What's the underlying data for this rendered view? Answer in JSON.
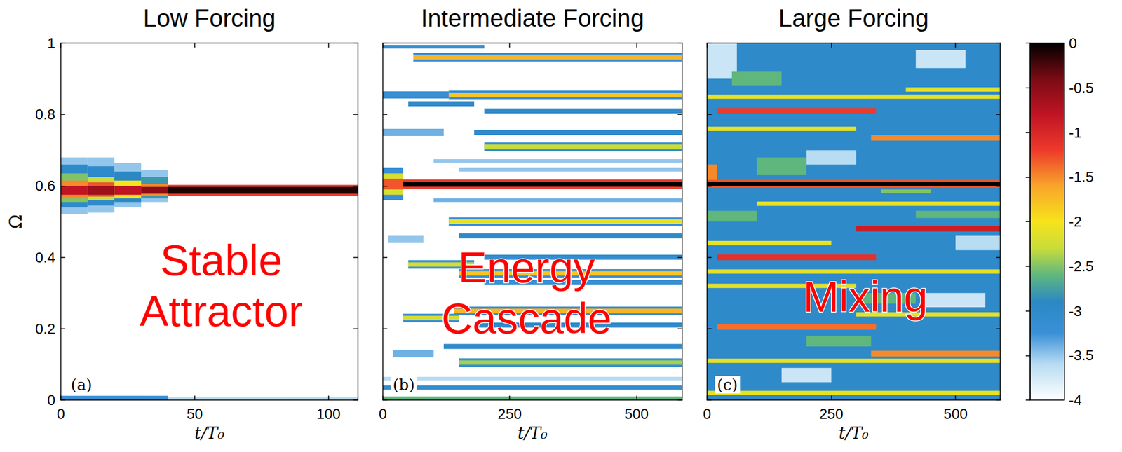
{
  "chart_data": [
    {
      "type": "heatmap",
      "title": "Low Forcing",
      "xlabel": "t/T₀",
      "ylabel": "Ω",
      "annotation": [
        "Stable",
        "Attractor"
      ],
      "panel_label": "(a)",
      "xlim": [
        0,
        111
      ],
      "ylim": [
        0,
        1
      ],
      "xticks": [
        0,
        50,
        100
      ],
      "yticks": [
        0,
        0.2,
        0.4,
        0.6,
        0.8,
        1
      ],
      "cells": [
        [
          0,
          111,
          0,
          1,
          -4
        ],
        [
          0,
          10,
          0.52,
          0.68,
          -3.5
        ],
        [
          0,
          10,
          0.54,
          0.66,
          -3
        ],
        [
          0,
          10,
          0.555,
          0.635,
          -2.5
        ],
        [
          0,
          10,
          0.565,
          0.615,
          -1.5
        ],
        [
          0,
          10,
          0.575,
          0.6,
          -0.8
        ],
        [
          10,
          20,
          0.525,
          0.68,
          -3.5
        ],
        [
          10,
          20,
          0.545,
          0.655,
          -3
        ],
        [
          10,
          20,
          0.56,
          0.625,
          -2.3
        ],
        [
          10,
          20,
          0.57,
          0.61,
          -1.3
        ],
        [
          10,
          20,
          0.575,
          0.6,
          -0.6
        ],
        [
          20,
          30,
          0.54,
          0.665,
          -3.5
        ],
        [
          20,
          30,
          0.555,
          0.64,
          -2.9
        ],
        [
          20,
          30,
          0.565,
          0.615,
          -2
        ],
        [
          20,
          30,
          0.575,
          0.6,
          -0.8
        ],
        [
          30,
          40,
          0.555,
          0.645,
          -3.5
        ],
        [
          30,
          40,
          0.565,
          0.625,
          -2.8
        ],
        [
          30,
          40,
          0.572,
          0.605,
          -1.5
        ],
        [
          30,
          40,
          0.578,
          0.597,
          -0.5
        ],
        [
          40,
          111,
          0.572,
          0.603,
          -1.2
        ],
        [
          40,
          111,
          0.578,
          0.597,
          -0.1
        ],
        [
          0,
          40,
          0,
          0.012,
          -3.2
        ],
        [
          40,
          111,
          0,
          0.008,
          -3.6
        ]
      ]
    },
    {
      "type": "heatmap",
      "title": "Intermediate Forcing",
      "xlabel": "t/T₀",
      "annotation": [
        "Energy",
        "Cascade"
      ],
      "panel_label": "(b)",
      "tick_labels": "x",
      "xlim": [
        0,
        590
      ],
      "ylim": [
        0,
        1
      ],
      "xticks": [
        0,
        250,
        500
      ],
      "yticks": [
        0,
        0.2,
        0.4,
        0.6,
        0.8,
        1
      ],
      "cells": [
        [
          0,
          590,
          0,
          1,
          -4
        ],
        [
          0,
          40,
          0.56,
          0.65,
          -3.2
        ],
        [
          0,
          40,
          0.575,
          0.635,
          -2.2
        ],
        [
          0,
          40,
          0.59,
          0.62,
          -1.3
        ],
        [
          40,
          590,
          0.592,
          0.618,
          -1.2
        ],
        [
          40,
          590,
          0.598,
          0.612,
          0
        ],
        [
          60,
          590,
          0.948,
          0.972,
          -3.2
        ],
        [
          60,
          590,
          0.954,
          0.966,
          -1.7
        ],
        [
          0,
          200,
          0.985,
          0.995,
          -3.1
        ],
        [
          0,
          130,
          0.845,
          0.865,
          -3.2
        ],
        [
          130,
          590,
          0.843,
          0.867,
          -3.2
        ],
        [
          130,
          590,
          0.849,
          0.861,
          -1.8
        ],
        [
          50,
          180,
          0.823,
          0.837,
          -3
        ],
        [
          200,
          590,
          0.803,
          0.817,
          -3
        ],
        [
          180,
          590,
          0.743,
          0.757,
          -3
        ],
        [
          200,
          590,
          0.698,
          0.722,
          -3.2
        ],
        [
          200,
          590,
          0.704,
          0.716,
          -2.3
        ],
        [
          100,
          590,
          0.665,
          0.675,
          -3.5
        ],
        [
          150,
          590,
          0.64,
          0.65,
          -3.5
        ],
        [
          100,
          590,
          0.555,
          0.565,
          -3.4
        ],
        [
          130,
          590,
          0.488,
          0.512,
          -3.2
        ],
        [
          130,
          590,
          0.494,
          0.506,
          -2.1
        ],
        [
          150,
          590,
          0.453,
          0.467,
          -3
        ],
        [
          200,
          590,
          0.393,
          0.407,
          -3.1
        ],
        [
          50,
          180,
          0.368,
          0.392,
          -3.2
        ],
        [
          50,
          180,
          0.374,
          0.386,
          -2.2
        ],
        [
          150,
          590,
          0.343,
          0.367,
          -3.2
        ],
        [
          150,
          590,
          0.349,
          0.361,
          -1.8
        ],
        [
          200,
          590,
          0.324,
          0.336,
          -3.2
        ],
        [
          140,
          590,
          0.238,
          0.262,
          -3.2
        ],
        [
          140,
          590,
          0.244,
          0.256,
          -1.7
        ],
        [
          40,
          150,
          0.218,
          0.242,
          -3.2
        ],
        [
          40,
          150,
          0.224,
          0.236,
          -2.2
        ],
        [
          180,
          590,
          0.203,
          0.217,
          -3
        ],
        [
          120,
          590,
          0.143,
          0.157,
          -3
        ],
        [
          150,
          590,
          0.093,
          0.117,
          -3.2
        ],
        [
          150,
          590,
          0.099,
          0.111,
          -2.4
        ],
        [
          0,
          590,
          0.055,
          0.065,
          -3.6
        ],
        [
          0,
          590,
          0.029,
          0.041,
          -3.1
        ],
        [
          0,
          590,
          0,
          0.01,
          -2.6
        ],
        [
          0,
          120,
          0.74,
          0.76,
          -3.4
        ],
        [
          20,
          100,
          0.12,
          0.14,
          -3.4
        ],
        [
          10,
          80,
          0.44,
          0.46,
          -3.5
        ]
      ]
    },
    {
      "type": "heatmap",
      "title": "Large Forcing",
      "xlabel": "t/T₀",
      "annotation": [
        "Mixing"
      ],
      "panel_label": "(c)",
      "tick_labels": "x",
      "xlim": [
        0,
        590
      ],
      "ylim": [
        0,
        1
      ],
      "xticks": [
        0,
        250,
        500
      ],
      "yticks": [
        0,
        0.2,
        0.4,
        0.6,
        0.8,
        1
      ],
      "cells": [
        [
          0,
          590,
          0,
          1,
          -3
        ],
        [
          0,
          60,
          0.9,
          1,
          -3.7
        ],
        [
          420,
          520,
          0.93,
          0.98,
          -3.7
        ],
        [
          150,
          250,
          0.05,
          0.09,
          -3.7
        ],
        [
          430,
          560,
          0.26,
          0.3,
          -3.7
        ],
        [
          200,
          300,
          0.66,
          0.7,
          -3.6
        ],
        [
          500,
          590,
          0.42,
          0.46,
          -3.6
        ],
        [
          100,
          200,
          0.63,
          0.68,
          -2.6
        ],
        [
          300,
          420,
          0.27,
          0.3,
          -2.6
        ],
        [
          50,
          150,
          0.88,
          0.92,
          -2.6
        ],
        [
          350,
          450,
          0.58,
          0.59,
          -2.5
        ],
        [
          200,
          330,
          0.15,
          0.18,
          -2.6
        ],
        [
          420,
          590,
          0.51,
          0.53,
          -2.6
        ],
        [
          0,
          100,
          0.5,
          0.53,
          -2.6
        ],
        [
          0,
          590,
          0.844,
          0.856,
          -2.1
        ],
        [
          400,
          590,
          0.864,
          0.876,
          -2.1
        ],
        [
          0,
          300,
          0.754,
          0.766,
          -2.1
        ],
        [
          100,
          590,
          0.544,
          0.556,
          -2.1
        ],
        [
          0,
          590,
          0.354,
          0.366,
          -2.1
        ],
        [
          300,
          590,
          0.234,
          0.246,
          -2.1
        ],
        [
          0,
          590,
          0.104,
          0.116,
          -2.1
        ],
        [
          0,
          250,
          0.434,
          0.446,
          -2.1
        ],
        [
          0,
          300,
          0.314,
          0.326,
          -2.1
        ],
        [
          0,
          590,
          0.014,
          0.026,
          -2.1
        ],
        [
          20,
          340,
          0.802,
          0.818,
          -1.2
        ],
        [
          330,
          590,
          0.727,
          0.743,
          -1.5
        ],
        [
          20,
          340,
          0.392,
          0.408,
          -1.1
        ],
        [
          300,
          590,
          0.472,
          0.488,
          -0.9
        ],
        [
          20,
          340,
          0.197,
          0.213,
          -1.4
        ],
        [
          330,
          590,
          0.122,
          0.138,
          -1.5
        ],
        [
          0,
          20,
          0.6,
          0.66,
          -1.5
        ],
        [
          0,
          590,
          0.595,
          0.617,
          -1.3
        ],
        [
          0,
          590,
          0.6,
          0.612,
          0
        ]
      ]
    },
    {
      "type": "colorbar",
      "ylim": [
        -4,
        0
      ],
      "yticks": [
        -4,
        -3.5,
        -3,
        -2.5,
        -2,
        -1.5,
        -1,
        -0.5,
        0
      ]
    }
  ]
}
